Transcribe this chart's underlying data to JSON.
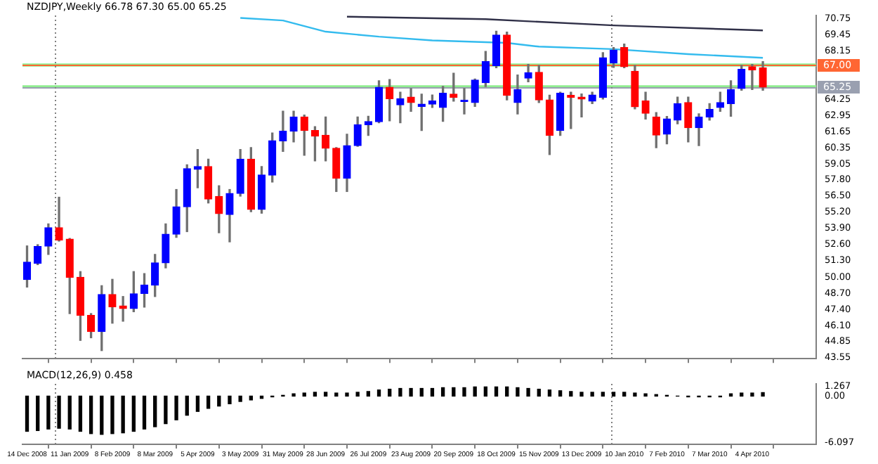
{
  "chart_data": [
    {
      "type": "candlestick",
      "title": "NZDJPY,Weekly 66.78 67.30 65.00 65.25",
      "x": [
        "2008-12-14",
        "2008-12-21",
        "2008-12-28",
        "2009-01-04",
        "2009-01-11",
        "2009-01-18",
        "2009-01-25",
        "2009-02-01",
        "2009-02-08",
        "2009-02-15",
        "2009-02-22",
        "2009-03-01",
        "2009-03-08",
        "2009-03-15",
        "2009-03-22",
        "2009-03-29",
        "2009-04-05",
        "2009-04-12",
        "2009-04-19",
        "2009-04-26",
        "2009-05-03",
        "2009-05-10",
        "2009-05-17",
        "2009-05-24",
        "2009-05-31",
        "2009-06-07",
        "2009-06-14",
        "2009-06-21",
        "2009-06-28",
        "2009-07-05",
        "2009-07-12",
        "2009-07-19",
        "2009-07-26",
        "2009-08-02",
        "2009-08-09",
        "2009-08-16",
        "2009-08-23",
        "2009-08-30",
        "2009-09-06",
        "2009-09-13",
        "2009-09-20",
        "2009-09-27",
        "2009-10-04",
        "2009-10-11",
        "2009-10-18",
        "2009-10-25",
        "2009-11-01",
        "2009-11-08",
        "2009-11-15",
        "2009-11-22",
        "2009-11-29",
        "2009-12-06",
        "2009-12-13",
        "2009-12-20",
        "2009-12-27",
        "2010-01-03",
        "2010-01-10",
        "2010-01-17",
        "2010-01-24",
        "2010-01-31",
        "2010-02-07",
        "2010-02-14",
        "2010-02-21",
        "2010-02-28",
        "2010-03-07",
        "2010-03-14",
        "2010-03-21",
        "2010-03-28",
        "2010-04-04",
        "2010-04-11"
      ],
      "ohlc": [
        [
          49.8,
          52.5,
          49.2,
          51.2
        ],
        [
          51.1,
          52.6,
          51.0,
          52.45
        ],
        [
          52.49,
          54.27,
          51.82,
          53.96
        ],
        [
          53.96,
          56.41,
          52.89,
          52.98
        ],
        [
          53.04,
          53.1,
          47.07,
          49.98
        ],
        [
          49.98,
          50.44,
          44.92,
          46.92
        ],
        [
          46.92,
          47.07,
          45.13,
          45.63
        ],
        [
          45.63,
          49.31,
          44.1,
          48.6
        ],
        [
          48.6,
          49.82,
          46.3,
          47.62
        ],
        [
          47.68,
          48.44,
          46.46,
          47.47
        ],
        [
          47.47,
          50.44,
          47.22,
          48.66
        ],
        [
          48.69,
          50.28,
          47.59,
          49.36
        ],
        [
          49.36,
          51.82,
          48.44,
          51.14
        ],
        [
          51.14,
          54.27,
          50.74,
          53.44
        ],
        [
          53.44,
          57.03,
          53.19,
          55.64
        ],
        [
          55.65,
          59.01,
          53.65,
          58.71
        ],
        [
          58.65,
          60.24,
          57.17,
          58.87
        ],
        [
          58.87,
          59.47,
          55.95,
          56.26
        ],
        [
          56.47,
          57.33,
          53.56,
          55.1
        ],
        [
          55.03,
          57.03,
          52.83,
          56.71
        ],
        [
          56.72,
          60.24,
          56.5,
          59.47
        ],
        [
          59.47,
          60.39,
          55.25,
          55.43
        ],
        [
          55.43,
          58.87,
          55.13,
          58.19
        ],
        [
          58.19,
          61.56,
          57.63,
          60.94
        ],
        [
          60.94,
          63.31,
          60.09,
          61.71
        ],
        [
          61.71,
          63.31,
          60.85,
          62.85
        ],
        [
          62.85,
          63.0,
          59.78,
          61.77
        ],
        [
          61.77,
          62.08,
          59.33,
          61.31
        ],
        [
          61.38,
          62.85,
          59.33,
          60.34
        ],
        [
          60.34,
          60.4,
          56.87,
          57.95
        ],
        [
          57.95,
          61.47,
          56.87,
          60.55
        ],
        [
          60.55,
          62.85,
          60.5,
          62.23
        ],
        [
          62.23,
          62.91,
          61.38,
          62.48
        ],
        [
          62.48,
          65.76,
          62.39,
          65.24
        ],
        [
          65.24,
          65.85,
          62.54,
          64.32
        ],
        [
          63.83,
          64.84,
          62.39,
          64.32
        ],
        [
          64.44,
          65.14,
          63.31,
          64.01
        ],
        [
          63.7,
          64.68,
          61.77,
          63.88
        ],
        [
          63.88,
          64.62,
          63.61,
          64.13
        ],
        [
          63.61,
          65.3,
          62.5,
          64.75
        ],
        [
          64.68,
          66.37,
          64.13,
          64.44
        ],
        [
          64.1,
          65.14,
          63.09,
          64.2
        ],
        [
          64.01,
          65.9,
          63.7,
          65.82
        ],
        [
          65.6,
          68.11,
          65.3,
          67.29
        ],
        [
          66.98,
          69.74,
          66.8,
          69.43
        ],
        [
          69.43,
          69.66,
          64.22,
          64.59
        ],
        [
          64.01,
          66.22,
          63.09,
          65.05
        ],
        [
          65.97,
          67.07,
          65.67,
          66.41
        ],
        [
          66.43,
          66.98,
          64.01,
          64.22
        ],
        [
          64.22,
          64.6,
          59.84,
          61.38
        ],
        [
          61.77,
          64.84,
          61.38,
          64.75
        ],
        [
          64.59,
          64.84,
          61.93,
          64.44
        ],
        [
          64.44,
          64.7,
          62.85,
          64.29
        ],
        [
          64.13,
          64.84,
          63.92,
          64.62
        ],
        [
          64.44,
          68.02,
          64.3,
          67.6
        ],
        [
          67.19,
          68.42,
          66.83,
          68.21
        ],
        [
          68.42,
          68.7,
          66.8,
          66.89
        ],
        [
          66.52,
          66.98,
          63.5,
          63.67
        ],
        [
          64.13,
          64.84,
          62.69,
          63.15
        ],
        [
          62.85,
          63.21,
          60.39,
          61.4
        ],
        [
          61.47,
          62.9,
          60.7,
          62.69
        ],
        [
          62.6,
          64.44,
          62.3,
          63.92
        ],
        [
          64.01,
          64.44,
          60.85,
          61.99
        ],
        [
          61.99,
          63.1,
          60.55,
          62.85
        ],
        [
          62.85,
          63.92,
          62.6,
          63.46
        ],
        [
          63.61,
          64.84,
          63.3,
          64.01
        ],
        [
          63.92,
          65.76,
          62.91,
          65.05
        ],
        [
          65.14,
          67.0,
          65.0,
          66.68
        ],
        [
          66.89,
          67.07,
          65.05,
          66.64
        ],
        [
          66.78,
          67.3,
          65.0,
          65.25
        ]
      ],
      "series": [
        {
          "type": "line",
          "color": "#33bbee",
          "x": [
            "2009-05-03",
            "2009-05-31",
            "2009-06-28",
            "2009-08-02",
            "2009-09-06",
            "2009-10-25",
            "2009-11-15",
            "2010-01-03",
            "2010-02-21",
            "2010-04-11"
          ],
          "values": [
            70.8,
            70.6,
            69.7,
            69.3,
            69.0,
            68.8,
            68.5,
            68.3,
            67.9,
            67.6
          ]
        },
        {
          "type": "line",
          "color": "#303048",
          "x": [
            "2009-07-12",
            "2009-10-11",
            "2010-01-03",
            "2010-04-11"
          ],
          "values": [
            70.9,
            70.7,
            70.2,
            69.8
          ]
        }
      ],
      "xlim": [
        "2008-12-11",
        "2010-05-16"
      ],
      "xticks": [
        {
          "value": "2008-12-14",
          "label": null
        },
        {
          "value": "2009-01-11",
          "label": null
        },
        {
          "value": "2009-02-08",
          "label": null
        },
        {
          "value": "2009-03-08",
          "label": null
        },
        {
          "value": "2009-04-05",
          "label": null
        },
        {
          "value": "2009-05-03",
          "label": null
        },
        {
          "value": "2009-05-31",
          "label": null
        },
        {
          "value": "2009-06-28",
          "label": null
        },
        {
          "value": "2009-07-26",
          "label": null
        },
        {
          "value": "2009-08-23",
          "label": null
        },
        {
          "value": "2009-09-20",
          "label": null
        },
        {
          "value": "2009-10-18",
          "label": null
        },
        {
          "value": "2009-11-15",
          "label": null
        },
        {
          "value": "2009-12-13",
          "label": null
        },
        {
          "value": "2010-01-10",
          "label": null
        },
        {
          "value": "2010-02-07",
          "label": null
        },
        {
          "value": "2010-03-07",
          "label": null
        },
        {
          "value": "2010-04-04",
          "label": null
        }
      ],
      "ylim": [
        43.45,
        71.0
      ],
      "yticks": [
        70.75,
        69.45,
        68.15,
        64.25,
        62.95,
        61.65,
        60.35,
        59.05,
        {
          "value": 57.8,
          "label": "57.80"
        },
        {
          "value": 56.5,
          "label": "56.50"
        },
        {
          "value": 55.2,
          "label": "55.20"
        },
        {
          "value": 53.9,
          "label": "53.90"
        },
        {
          "value": 52.6,
          "label": "52.60"
        },
        {
          "value": 51.3,
          "label": "51.30"
        },
        {
          "value": 50,
          "label": "50.00"
        },
        {
          "value": 48.7,
          "label": "48.70"
        },
        {
          "value": 47.4,
          "label": "47.40"
        },
        {
          "value": 46.1,
          "label": "46.10"
        },
        44.85,
        43.55
      ],
      "tick_labels": "y",
      "ref_lines": [
        {
          "axis": "y",
          "value": 67.0,
          "label": "67.00",
          "color": "#ff6633"
        },
        {
          "axis": "y",
          "value": 65.25,
          "label": "65.25",
          "color": "#9aa0b0"
        },
        {
          "axis": "x",
          "value": "2009-01-01",
          "color": "#808080",
          "line_style": "dotted"
        },
        {
          "axis": "x",
          "value": "2010-01-01",
          "color": "#808080",
          "line_style": "dotted"
        }
      ],
      "bands": [
        {
          "axis": "y",
          "from": 66.9,
          "to": 67.15,
          "color": "#90ee90"
        },
        {
          "axis": "y",
          "from": 65.15,
          "to": 65.4,
          "color": "#90ee90"
        }
      ]
    },
    {
      "type": "bar",
      "title": "MACD(12,26,9) 0.458",
      "color": "#000000",
      "x": [
        "2008-12-14",
        "2008-12-21",
        "2008-12-28",
        "2009-01-04",
        "2009-01-11",
        "2009-01-18",
        "2009-01-25",
        "2009-02-01",
        "2009-02-08",
        "2009-02-15",
        "2009-02-22",
        "2009-03-01",
        "2009-03-08",
        "2009-03-15",
        "2009-03-22",
        "2009-03-29",
        "2009-04-05",
        "2009-04-12",
        "2009-04-19",
        "2009-04-26",
        "2009-05-03",
        "2009-05-10",
        "2009-05-17",
        "2009-05-24",
        "2009-05-31",
        "2009-06-07",
        "2009-06-14",
        "2009-06-21",
        "2009-06-28",
        "2009-07-05",
        "2009-07-12",
        "2009-07-19",
        "2009-07-26",
        "2009-08-02",
        "2009-08-09",
        "2009-08-16",
        "2009-08-23",
        "2009-08-30",
        "2009-09-06",
        "2009-09-13",
        "2009-09-20",
        "2009-09-27",
        "2009-10-04",
        "2009-10-11",
        "2009-10-18",
        "2009-10-25",
        "2009-11-01",
        "2009-11-08",
        "2009-11-15",
        "2009-11-22",
        "2009-11-29",
        "2009-12-06",
        "2009-12-13",
        "2009-12-20",
        "2009-12-27",
        "2010-01-03",
        "2010-01-10",
        "2010-01-17",
        "2010-01-24",
        "2010-01-31",
        "2010-02-07",
        "2010-02-14",
        "2010-02-21",
        "2010-02-28",
        "2010-03-07",
        "2010-03-14",
        "2010-03-21",
        "2010-03-28",
        "2010-04-04",
        "2010-04-11"
      ],
      "values": [
        -4.6,
        -4.5,
        -4.3,
        -4.2,
        -4.3,
        -4.6,
        -4.9,
        -5.0,
        -4.9,
        -4.8,
        -4.6,
        -4.3,
        -4.0,
        -3.6,
        -3.1,
        -2.5,
        -2.0,
        -1.6,
        -1.3,
        -1.0,
        -0.7,
        -0.5,
        -0.3,
        -0.1,
        0.1,
        0.3,
        0.4,
        0.5,
        0.5,
        0.4,
        0.4,
        0.5,
        0.6,
        0.8,
        0.9,
        1.0,
        1.0,
        1.0,
        1.0,
        1.1,
        1.1,
        1.1,
        1.2,
        1.2,
        1.2,
        1.2,
        1.1,
        1.0,
        0.9,
        0.8,
        0.7,
        0.6,
        0.5,
        0.5,
        0.5,
        0.5,
        0.5,
        0.4,
        0.3,
        0.2,
        0.1,
        0.0,
        -0.1,
        -0.1,
        -0.1,
        -0.1,
        0.3,
        0.4,
        0.4,
        0.458
      ],
      "xlim": [
        "2008-12-11",
        "2010-05-16"
      ],
      "xticks": [
        {
          "value": "2008-12-14",
          "label": "14 Dec 2008"
        },
        {
          "value": "2009-01-11",
          "label": "11 Jan 2009"
        },
        {
          "value": "2009-02-08",
          "label": "8 Feb 2009"
        },
        {
          "value": "2009-03-08",
          "label": "8 Mar 2009"
        },
        {
          "value": "2009-04-05",
          "label": "5 Apr 2009"
        },
        {
          "value": "2009-05-03",
          "label": "3 May 2009"
        },
        {
          "value": "2009-05-31",
          "label": "31 May 2009"
        },
        {
          "value": "2009-06-28",
          "label": "28 Jun 2009"
        },
        {
          "value": "2009-07-26",
          "label": "26 Jul 2009"
        },
        {
          "value": "2009-08-23",
          "label": "23 Aug 2009"
        },
        {
          "value": "2009-09-20",
          "label": "20 Sep 2009"
        },
        {
          "value": "2009-10-18",
          "label": "18 Oct 2009"
        },
        {
          "value": "2009-11-15",
          "label": "15 Nov 2009"
        },
        {
          "value": "2009-12-13",
          "label": "13 Dec 2009"
        },
        {
          "value": "2010-01-10",
          "label": "10 Jan 2010"
        },
        {
          "value": "2010-02-07",
          "label": "7 Feb 2010"
        },
        {
          "value": "2010-03-07",
          "label": "7 Mar 2010"
        },
        {
          "value": "2010-04-04",
          "label": "4 Apr 2010"
        }
      ],
      "ylim": [
        -6.3,
        1.6
      ],
      "yticks": [
        1.267,
        {
          "value": 0,
          "label": "0.00"
        },
        -6.097
      ],
      "ref_lines": [
        {
          "axis": "x",
          "value": "2009-01-01",
          "color": "#808080",
          "line_style": "dotted"
        },
        {
          "axis": "x",
          "value": "2010-01-01",
          "color": "#808080",
          "line_style": "dotted"
        }
      ]
    }
  ]
}
